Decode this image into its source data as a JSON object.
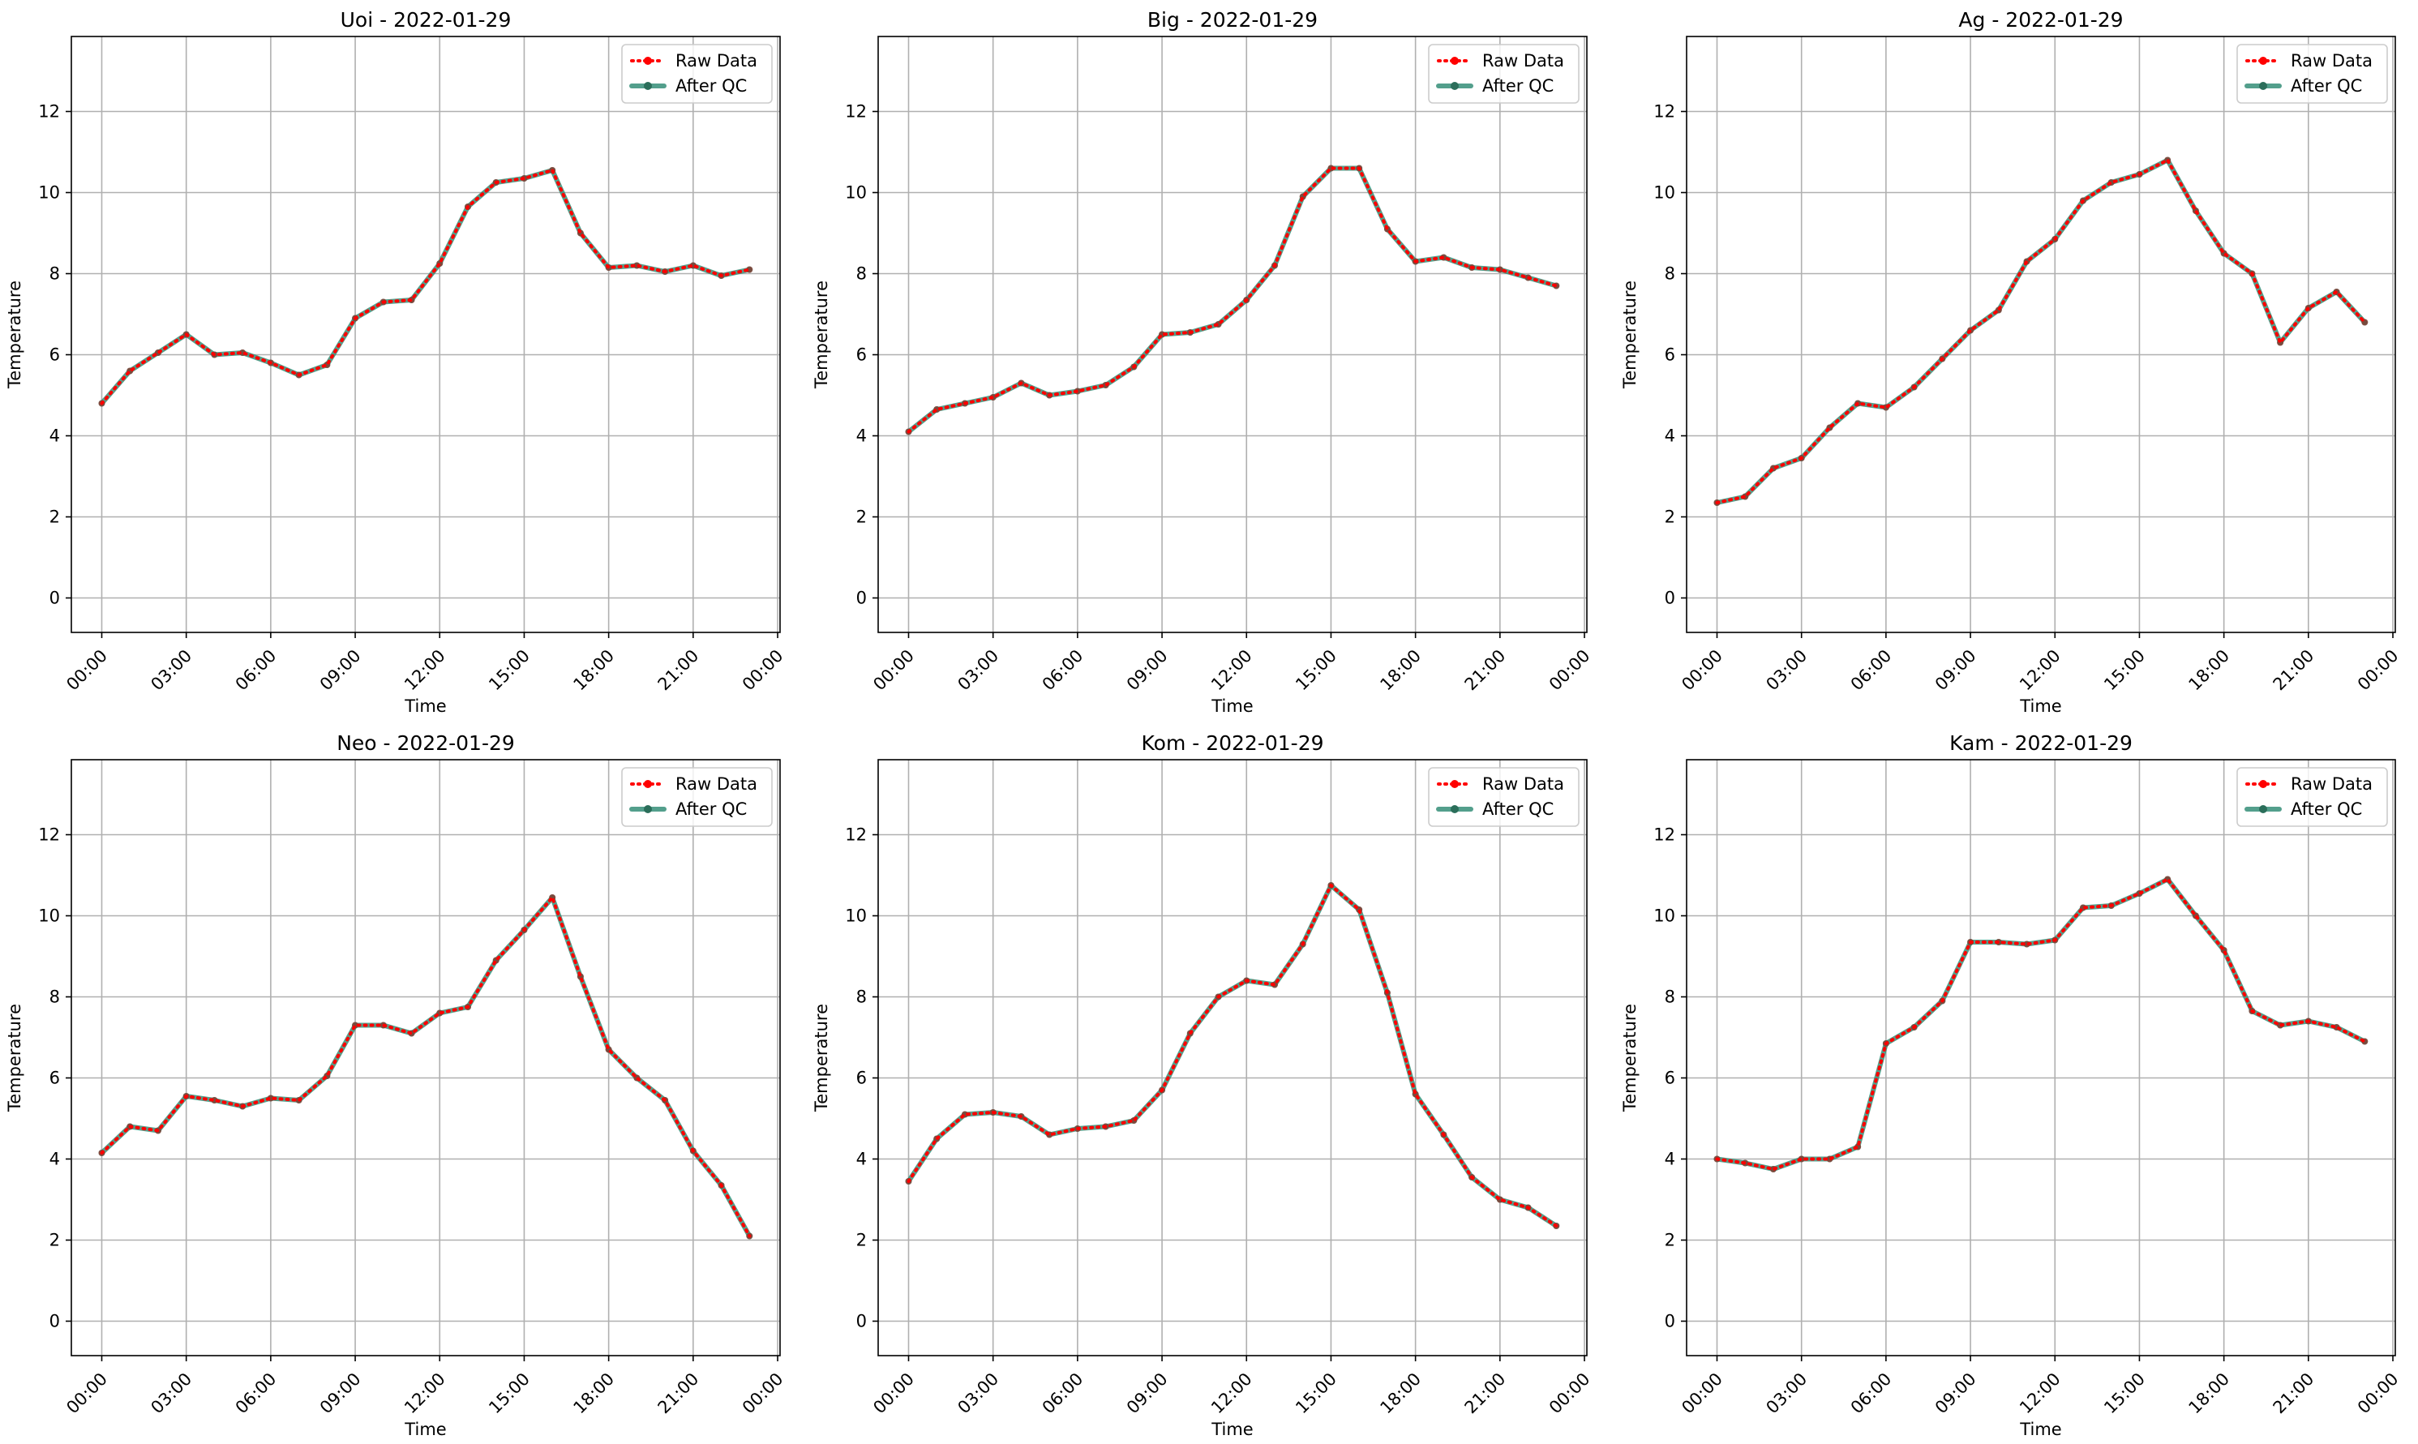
{
  "chart_data": [
    {
      "type": "line",
      "title": "Uoi - 2022-01-29",
      "xlabel": "Time",
      "ylabel": "Temperature",
      "x": [
        "00:00",
        "01:00",
        "02:00",
        "03:00",
        "04:00",
        "05:00",
        "06:00",
        "07:00",
        "08:00",
        "09:00",
        "10:00",
        "11:00",
        "12:00",
        "13:00",
        "14:00",
        "15:00",
        "16:00",
        "17:00",
        "18:00",
        "19:00",
        "20:00",
        "21:00",
        "22:00",
        "23:00"
      ],
      "x_ticks": [
        "00:00",
        "03:00",
        "06:00",
        "09:00",
        "12:00",
        "15:00",
        "18:00",
        "21:00",
        "00:00"
      ],
      "y_ticks": [
        0,
        2,
        4,
        6,
        8,
        10,
        12
      ],
      "ylim": [
        -0.85,
        13.85
      ],
      "grid": true,
      "legend_position": "top-right",
      "series": [
        {
          "name": "Raw Data",
          "color": "#ff0000",
          "style": "dotted",
          "values": [
            4.8,
            5.6,
            6.05,
            6.5,
            6.0,
            6.05,
            5.8,
            5.5,
            5.75,
            6.9,
            7.3,
            7.35,
            8.25,
            9.65,
            10.25,
            10.35,
            10.55,
            9.0,
            8.15,
            8.2,
            8.05,
            8.2,
            7.95,
            8.1
          ]
        },
        {
          "name": "After QC",
          "color": "#2e8b73",
          "style": "solid",
          "values": [
            4.8,
            5.6,
            6.05,
            6.5,
            6.0,
            6.05,
            5.8,
            5.5,
            5.75,
            6.9,
            7.3,
            7.35,
            8.25,
            9.65,
            10.25,
            10.35,
            10.55,
            9.0,
            8.15,
            8.2,
            8.05,
            8.2,
            7.95,
            8.1
          ]
        }
      ]
    },
    {
      "type": "line",
      "title": "Big - 2022-01-29",
      "xlabel": "Time",
      "ylabel": "Temperature",
      "x": [
        "00:00",
        "01:00",
        "02:00",
        "03:00",
        "04:00",
        "05:00",
        "06:00",
        "07:00",
        "08:00",
        "09:00",
        "10:00",
        "11:00",
        "12:00",
        "13:00",
        "14:00",
        "15:00",
        "16:00",
        "17:00",
        "18:00",
        "19:00",
        "20:00",
        "21:00",
        "22:00",
        "23:00"
      ],
      "x_ticks": [
        "00:00",
        "03:00",
        "06:00",
        "09:00",
        "12:00",
        "15:00",
        "18:00",
        "21:00",
        "00:00"
      ],
      "y_ticks": [
        0,
        2,
        4,
        6,
        8,
        10,
        12
      ],
      "ylim": [
        -0.85,
        13.85
      ],
      "grid": true,
      "legend_position": "top-right",
      "series": [
        {
          "name": "Raw Data",
          "color": "#ff0000",
          "style": "dotted",
          "values": [
            4.1,
            4.65,
            4.8,
            4.95,
            5.3,
            5.0,
            5.1,
            5.25,
            5.7,
            6.5,
            6.55,
            6.75,
            7.35,
            8.2,
            9.9,
            10.6,
            10.6,
            9.1,
            8.3,
            8.4,
            8.15,
            8.1,
            7.9,
            7.7
          ]
        },
        {
          "name": "After QC",
          "color": "#2e8b73",
          "style": "solid",
          "values": [
            4.1,
            4.65,
            4.8,
            4.95,
            5.3,
            5.0,
            5.1,
            5.25,
            5.7,
            6.5,
            6.55,
            6.75,
            7.35,
            8.2,
            9.9,
            10.6,
            10.6,
            9.1,
            8.3,
            8.4,
            8.15,
            8.1,
            7.9,
            7.7
          ]
        }
      ]
    },
    {
      "type": "line",
      "title": "Ag - 2022-01-29",
      "xlabel": "Time",
      "ylabel": "Temperature",
      "x": [
        "00:00",
        "01:00",
        "02:00",
        "03:00",
        "04:00",
        "05:00",
        "06:00",
        "07:00",
        "08:00",
        "09:00",
        "10:00",
        "11:00",
        "12:00",
        "13:00",
        "14:00",
        "15:00",
        "16:00",
        "17:00",
        "18:00",
        "19:00",
        "20:00",
        "21:00",
        "22:00",
        "23:00"
      ],
      "x_ticks": [
        "00:00",
        "03:00",
        "06:00",
        "09:00",
        "12:00",
        "15:00",
        "18:00",
        "21:00",
        "00:00"
      ],
      "y_ticks": [
        0,
        2,
        4,
        6,
        8,
        10,
        12
      ],
      "ylim": [
        -0.85,
        13.85
      ],
      "grid": true,
      "legend_position": "top-right",
      "series": [
        {
          "name": "Raw Data",
          "color": "#ff0000",
          "style": "dotted",
          "values": [
            2.35,
            2.5,
            3.2,
            3.45,
            4.2,
            4.8,
            4.7,
            5.2,
            5.9,
            6.6,
            7.1,
            8.3,
            8.85,
            9.8,
            10.25,
            10.45,
            10.8,
            9.55,
            8.5,
            8.0,
            6.3,
            7.15,
            7.55,
            6.8
          ]
        },
        {
          "name": "After QC",
          "color": "#2e8b73",
          "style": "solid",
          "values": [
            2.35,
            2.5,
            3.2,
            3.45,
            4.2,
            4.8,
            4.7,
            5.2,
            5.9,
            6.6,
            7.1,
            8.3,
            8.85,
            9.8,
            10.25,
            10.45,
            10.8,
            9.55,
            8.5,
            8.0,
            6.3,
            7.15,
            7.55,
            6.8
          ]
        }
      ]
    },
    {
      "type": "line",
      "title": "Neo - 2022-01-29",
      "xlabel": "Time",
      "ylabel": "Temperature",
      "x": [
        "00:00",
        "01:00",
        "02:00",
        "03:00",
        "04:00",
        "05:00",
        "06:00",
        "07:00",
        "08:00",
        "09:00",
        "10:00",
        "11:00",
        "12:00",
        "13:00",
        "14:00",
        "15:00",
        "16:00",
        "17:00",
        "18:00",
        "19:00",
        "20:00",
        "21:00",
        "22:00",
        "23:00"
      ],
      "x_ticks": [
        "00:00",
        "03:00",
        "06:00",
        "09:00",
        "12:00",
        "15:00",
        "18:00",
        "21:00",
        "00:00"
      ],
      "y_ticks": [
        0,
        2,
        4,
        6,
        8,
        10,
        12
      ],
      "ylim": [
        -0.85,
        13.85
      ],
      "grid": true,
      "legend_position": "top-right",
      "series": [
        {
          "name": "Raw Data",
          "color": "#ff0000",
          "style": "dotted",
          "values": [
            4.15,
            4.8,
            4.7,
            5.55,
            5.45,
            5.3,
            5.5,
            5.45,
            6.05,
            7.3,
            7.3,
            7.1,
            7.6,
            7.75,
            8.9,
            9.65,
            10.45,
            8.5,
            6.7,
            6.0,
            5.45,
            4.2,
            3.35,
            2.1
          ]
        },
        {
          "name": "After QC",
          "color": "#2e8b73",
          "style": "solid",
          "values": [
            4.15,
            4.8,
            4.7,
            5.55,
            5.45,
            5.3,
            5.5,
            5.45,
            6.05,
            7.3,
            7.3,
            7.1,
            7.6,
            7.75,
            8.9,
            9.65,
            10.45,
            8.5,
            6.7,
            6.0,
            5.45,
            4.2,
            3.35,
            2.1
          ]
        }
      ]
    },
    {
      "type": "line",
      "title": "Kom - 2022-01-29",
      "xlabel": "Time",
      "ylabel": "Temperature",
      "x": [
        "00:00",
        "01:00",
        "02:00",
        "03:00",
        "04:00",
        "05:00",
        "06:00",
        "07:00",
        "08:00",
        "09:00",
        "10:00",
        "11:00",
        "12:00",
        "13:00",
        "14:00",
        "15:00",
        "16:00",
        "17:00",
        "18:00",
        "19:00",
        "20:00",
        "21:00",
        "22:00",
        "23:00"
      ],
      "x_ticks": [
        "00:00",
        "03:00",
        "06:00",
        "09:00",
        "12:00",
        "15:00",
        "18:00",
        "21:00",
        "00:00"
      ],
      "y_ticks": [
        0,
        2,
        4,
        6,
        8,
        10,
        12
      ],
      "ylim": [
        -0.85,
        13.85
      ],
      "grid": true,
      "legend_position": "top-right",
      "series": [
        {
          "name": "Raw Data",
          "color": "#ff0000",
          "style": "dotted",
          "values": [
            3.45,
            4.5,
            5.1,
            5.15,
            5.05,
            4.6,
            4.75,
            4.8,
            4.95,
            5.7,
            7.1,
            8.0,
            8.4,
            8.3,
            9.3,
            10.75,
            10.15,
            8.1,
            5.6,
            4.6,
            3.55,
            3.0,
            2.8,
            2.35
          ]
        },
        {
          "name": "After QC",
          "color": "#2e8b73",
          "style": "solid",
          "values": [
            3.45,
            4.5,
            5.1,
            5.15,
            5.05,
            4.6,
            4.75,
            4.8,
            4.95,
            5.7,
            7.1,
            8.0,
            8.4,
            8.3,
            9.3,
            10.75,
            10.15,
            8.1,
            5.6,
            4.6,
            3.55,
            3.0,
            2.8,
            2.35
          ]
        }
      ]
    },
    {
      "type": "line",
      "title": "Kam - 2022-01-29",
      "xlabel": "Time",
      "ylabel": "Temperature",
      "x": [
        "00:00",
        "01:00",
        "02:00",
        "03:00",
        "04:00",
        "05:00",
        "06:00",
        "07:00",
        "08:00",
        "09:00",
        "10:00",
        "11:00",
        "12:00",
        "13:00",
        "14:00",
        "15:00",
        "16:00",
        "17:00",
        "18:00",
        "19:00",
        "20:00",
        "21:00",
        "22:00",
        "23:00"
      ],
      "x_ticks": [
        "00:00",
        "03:00",
        "06:00",
        "09:00",
        "12:00",
        "15:00",
        "18:00",
        "21:00",
        "00:00"
      ],
      "y_ticks": [
        0,
        2,
        4,
        6,
        8,
        10,
        12
      ],
      "ylim": [
        -0.85,
        13.85
      ],
      "grid": true,
      "legend_position": "top-right",
      "series": [
        {
          "name": "Raw Data",
          "color": "#ff0000",
          "style": "dotted",
          "values": [
            4.0,
            3.9,
            3.75,
            4.0,
            4.0,
            4.3,
            6.85,
            7.25,
            7.9,
            9.35,
            9.35,
            9.3,
            9.4,
            10.2,
            10.25,
            10.55,
            10.9,
            10.0,
            9.15,
            7.65,
            7.3,
            7.4,
            7.25,
            6.9
          ]
        },
        {
          "name": "After QC",
          "color": "#2e8b73",
          "style": "solid",
          "values": [
            4.0,
            3.9,
            3.75,
            4.0,
            4.0,
            4.3,
            6.85,
            7.25,
            7.9,
            9.35,
            9.35,
            9.3,
            9.4,
            10.2,
            10.25,
            10.55,
            10.9,
            10.0,
            9.15,
            7.65,
            7.3,
            7.4,
            7.25,
            6.9
          ]
        }
      ]
    }
  ]
}
